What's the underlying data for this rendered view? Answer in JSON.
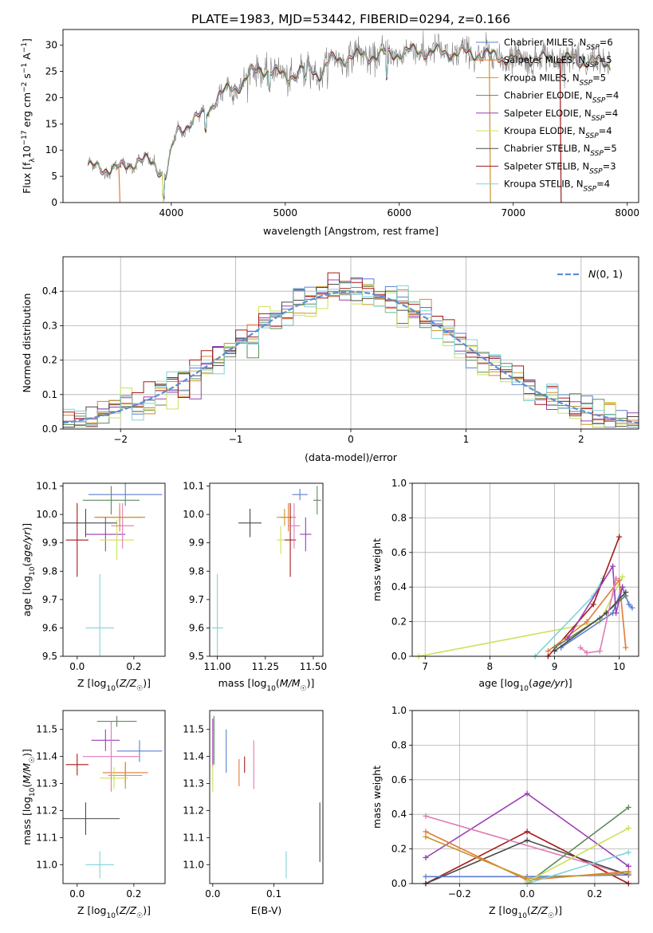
{
  "figure_title": "PLATE=1983, MJD=53442, FIBERID=0294, z=0.166",
  "colors": {
    "chabrier_miles": "#5b7fd0",
    "salpeter_miles": "#e07b39",
    "kroupa_miles": "#c8942b",
    "chabrier_elodie": "#5f8a5f",
    "salpeter_elodie": "#9b3fb5",
    "kroupa_elodie": "#cde05a",
    "chabrier_stelib": "#4a4a4a",
    "salpeter_stelib": "#a31a1a",
    "kroupa_stelib": "#7fd3d9",
    "pink": "#e07bb5",
    "spectrum": "#808080",
    "normal_curve": "#5b8fd6"
  },
  "chart_data": [
    {
      "id": "spectrum",
      "type": "line",
      "title": "PLATE=1983, MJD=53442, FIBERID=0294, z=0.166",
      "xlabel": "wavelength [Angstrom, rest frame]",
      "ylabel": "Flux [f_λ10^-17 erg cm^-2 s^-1 A^-1]",
      "xlim": [
        3050,
        8100
      ],
      "ylim": [
        0,
        33
      ],
      "xticks": [
        4000,
        5000,
        6000,
        7000,
        8000
      ],
      "yticks": [
        0,
        5,
        10,
        15,
        20,
        25,
        30
      ],
      "grid": false,
      "legend_position": "right",
      "continuum": {
        "x": [
          3270,
          3400,
          3550,
          3700,
          3850,
          3950,
          4050,
          4150,
          4300,
          4400,
          4500,
          4600,
          4700,
          4800,
          4900,
          5000,
          5100,
          5200,
          5300,
          5400,
          5600,
          5800,
          6000,
          6200,
          6400,
          6600,
          6800,
          7000,
          7200,
          7400,
          7600,
          7850
        ],
        "y": [
          6.8,
          6.5,
          6.5,
          8.0,
          7.5,
          5.0,
          13.5,
          15.0,
          17.0,
          20.0,
          21.5,
          22.5,
          24.5,
          25.5,
          25.0,
          24.0,
          24.5,
          26.0,
          24.5,
          27.0,
          28.0,
          28.0,
          28.5,
          29.0,
          28.5,
          28.5,
          28.0,
          27.5,
          27.5,
          27.5,
          27.0,
          26.5
        ]
      },
      "series": [
        {
          "name": "Chabrier MILES, N_SSP=6",
          "color_key": "chabrier_miles"
        },
        {
          "name": "Salpeter MILES, N_SSP=5",
          "color_key": "salpeter_miles"
        },
        {
          "name": "Kroupa MILES, N_SSP=5",
          "color_key": "kroupa_miles"
        },
        {
          "name": "Chabrier ELODIE, N_SSP=4",
          "color_key": "chabrier_elodie"
        },
        {
          "name": "Salpeter ELODIE, N_SSP=4",
          "color_key": "salpeter_elodie"
        },
        {
          "name": "Kroupa ELODIE, N_SSP=4",
          "color_key": "kroupa_elodie"
        },
        {
          "name": "Chabrier STELIB, N_SSP=5",
          "color_key": "chabrier_stelib"
        },
        {
          "name": "Salpeter STELIB, N_SSP=3",
          "color_key": "salpeter_stelib"
        },
        {
          "name": "Kroupa STELIB, N_SSP=4",
          "color_key": "kroupa_stelib"
        }
      ],
      "dropouts": [
        {
          "x": 3540,
          "color_key": "salpeter_miles"
        },
        {
          "x": 3920,
          "color_key": "kroupa_elodie"
        },
        {
          "x": 6790,
          "color_key": "kroupa_miles"
        },
        {
          "x": 7410,
          "color_key": "salpeter_stelib"
        }
      ]
    },
    {
      "id": "residuals",
      "type": "histogram",
      "xlabel": "(data-model)/error",
      "ylabel": "Normed distribution",
      "xlim": [
        -2.5,
        2.5
      ],
      "ylim": [
        0,
        0.5
      ],
      "xticks": [
        -2,
        -1,
        0,
        1,
        2
      ],
      "yticks": [
        0.0,
        0.1,
        0.2,
        0.3,
        0.4
      ],
      "grid": true,
      "legend_position": "top-right",
      "legend": [
        "N(0,1)"
      ],
      "bin_width": 0.1
    },
    {
      "id": "age_vs_Z",
      "type": "errorbar",
      "xlabel": "Z [log10(Z/Z☉)]",
      "ylabel": "age  [log10(age/yr)]",
      "xlim": [
        -0.05,
        0.31
      ],
      "ylim": [
        9.5,
        10.11
      ],
      "xticks": [
        0.0,
        0.2
      ],
      "yticks": [
        9.5,
        9.6,
        9.7,
        9.8,
        9.9,
        10.0,
        10.1
      ],
      "points": [
        {
          "x": 0.17,
          "y": 10.07,
          "xerr": 0.13,
          "yerr": 0.04,
          "color_key": "chabrier_miles"
        },
        {
          "x": 0.15,
          "y": 9.99,
          "xerr": 0.09,
          "yerr": 0.05,
          "color_key": "salpeter_miles"
        },
        {
          "x": 0.15,
          "y": 9.99,
          "xerr": 0.08,
          "yerr": 0.03,
          "color_key": "kroupa_miles"
        },
        {
          "x": 0.12,
          "y": 10.05,
          "xerr": 0.1,
          "yerr": 0.05,
          "color_key": "chabrier_elodie"
        },
        {
          "x": 0.1,
          "y": 9.93,
          "xerr": 0.07,
          "yerr": 0.06,
          "color_key": "salpeter_elodie"
        },
        {
          "x": 0.14,
          "y": 9.91,
          "xerr": 0.06,
          "yerr": 0.07,
          "color_key": "kroupa_elodie"
        },
        {
          "x": 0.03,
          "y": 9.97,
          "xerr": 0.11,
          "yerr": 0.05,
          "color_key": "chabrier_stelib"
        },
        {
          "x": 0.0,
          "y": 9.91,
          "xerr": 0.04,
          "yerr": 0.13,
          "color_key": "salpeter_stelib"
        },
        {
          "x": 0.08,
          "y": 9.6,
          "xerr": 0.05,
          "yerr": 0.19,
          "color_key": "kroupa_stelib"
        },
        {
          "x": 0.16,
          "y": 9.96,
          "xerr": 0.04,
          "yerr": 0.08,
          "color_key": "pink"
        }
      ]
    },
    {
      "id": "age_vs_mass",
      "type": "errorbar",
      "xlabel": "mass [log10(M/M☉)]",
      "ylabel": "",
      "xlim": [
        10.96,
        11.55
      ],
      "ylim": [
        9.5,
        10.11
      ],
      "xticks": [
        11.0,
        11.25,
        11.5
      ],
      "yticks": [
        9.5,
        9.6,
        9.7,
        9.8,
        9.9,
        10.0,
        10.1
      ],
      "points": [
        {
          "x": 11.43,
          "y": 10.07,
          "xerr": 0.04,
          "yerr": 0.02,
          "color_key": "chabrier_miles"
        },
        {
          "x": 11.37,
          "y": 9.99,
          "xerr": 0.04,
          "yerr": 0.05,
          "color_key": "salpeter_miles"
        },
        {
          "x": 11.35,
          "y": 9.99,
          "xerr": 0.04,
          "yerr": 0.03,
          "color_key": "kroupa_miles"
        },
        {
          "x": 11.52,
          "y": 10.05,
          "xerr": 0.02,
          "yerr": 0.05,
          "color_key": "chabrier_elodie"
        },
        {
          "x": 11.46,
          "y": 9.93,
          "xerr": 0.03,
          "yerr": 0.06,
          "color_key": "salpeter_elodie"
        },
        {
          "x": 11.33,
          "y": 9.91,
          "xerr": 0.02,
          "yerr": 0.05,
          "color_key": "kroupa_elodie"
        },
        {
          "x": 11.17,
          "y": 9.97,
          "xerr": 0.06,
          "yerr": 0.05,
          "color_key": "chabrier_stelib"
        },
        {
          "x": 11.38,
          "y": 9.91,
          "xerr": 0.03,
          "yerr": 0.13,
          "color_key": "salpeter_stelib"
        },
        {
          "x": 11.0,
          "y": 9.6,
          "xerr": 0.03,
          "yerr": 0.19,
          "color_key": "kroupa_stelib"
        },
        {
          "x": 11.4,
          "y": 9.96,
          "xerr": 0.03,
          "yerr": 0.08,
          "color_key": "pink"
        }
      ]
    },
    {
      "id": "weight_vs_age",
      "type": "line",
      "xlabel": "age  [log10(age/yr)]",
      "ylabel": "mass weight",
      "xlim": [
        6.8,
        10.3
      ],
      "ylim": [
        0,
        1.0
      ],
      "xticks": [
        7,
        8,
        9,
        10
      ],
      "yticks": [
        0.0,
        0.2,
        0.4,
        0.6,
        0.8,
        1.0
      ],
      "grid": true,
      "series": [
        {
          "color_key": "kroupa_elodie",
          "x": [
            6.9,
            9.7,
            10.05
          ],
          "y": [
            0.0,
            0.2,
            0.46
          ]
        },
        {
          "color_key": "kroupa_stelib",
          "x": [
            8.7,
            9.6,
            9.75
          ],
          "y": [
            0.0,
            0.35,
            0.45
          ]
        },
        {
          "color_key": "salpeter_stelib",
          "x": [
            8.9,
            9.6,
            10.0
          ],
          "y": [
            0.0,
            0.3,
            0.69
          ]
        },
        {
          "color_key": "chabrier_miles",
          "x": [
            9.1,
            9.9,
            10.05,
            10.15,
            10.2
          ],
          "y": [
            0.05,
            0.25,
            0.4,
            0.3,
            0.28
          ]
        },
        {
          "color_key": "salpeter_miles",
          "x": [
            8.9,
            9.5,
            10.0,
            10.1
          ],
          "y": [
            0.03,
            0.2,
            0.44,
            0.05
          ]
        },
        {
          "color_key": "chabrier_elodie",
          "x": [
            9.0,
            9.7,
            10.1
          ],
          "y": [
            0.05,
            0.22,
            0.35
          ]
        },
        {
          "color_key": "salpeter_elodie",
          "x": [
            9.2,
            9.9,
            9.95,
            10.05
          ],
          "y": [
            0.1,
            0.52,
            0.25,
            0.4
          ]
        },
        {
          "color_key": "chabrier_stelib",
          "x": [
            9.0,
            9.8,
            10.1
          ],
          "y": [
            0.03,
            0.25,
            0.37
          ]
        },
        {
          "color_key": "pink",
          "x": [
            9.4,
            9.5,
            9.7,
            9.95
          ],
          "y": [
            0.05,
            0.02,
            0.03,
            0.45
          ]
        }
      ]
    },
    {
      "id": "mass_vs_Z",
      "type": "errorbar",
      "xlabel": "Z [log10(Z/Z☉)]",
      "ylabel": "mass [log10(M/M☉)]",
      "xlim": [
        -0.05,
        0.31
      ],
      "ylim": [
        10.93,
        11.57
      ],
      "xticks": [
        0.0,
        0.2
      ],
      "yticks": [
        11.0,
        11.1,
        11.2,
        11.3,
        11.4,
        11.5
      ],
      "points": [
        {
          "x": 0.22,
          "y": 11.42,
          "xerr": 0.08,
          "yerr": 0.04,
          "color_key": "chabrier_miles"
        },
        {
          "x": 0.17,
          "y": 11.34,
          "xerr": 0.08,
          "yerr": 0.04,
          "color_key": "salpeter_miles"
        },
        {
          "x": 0.17,
          "y": 11.33,
          "xerr": 0.06,
          "yerr": 0.05,
          "color_key": "kroupa_miles"
        },
        {
          "x": 0.14,
          "y": 11.53,
          "xerr": 0.07,
          "yerr": 0.02,
          "color_key": "chabrier_elodie"
        },
        {
          "x": 0.1,
          "y": 11.46,
          "xerr": 0.05,
          "yerr": 0.04,
          "color_key": "salpeter_elodie"
        },
        {
          "x": 0.13,
          "y": 11.32,
          "xerr": 0.05,
          "yerr": 0.04,
          "color_key": "kroupa_elodie"
        },
        {
          "x": 0.03,
          "y": 11.17,
          "xerr": 0.12,
          "yerr": 0.06,
          "color_key": "chabrier_stelib"
        },
        {
          "x": 0.0,
          "y": 11.37,
          "xerr": 0.04,
          "yerr": 0.04,
          "color_key": "salpeter_stelib"
        },
        {
          "x": 0.08,
          "y": 11.0,
          "xerr": 0.05,
          "yerr": 0.05,
          "color_key": "kroupa_stelib"
        },
        {
          "x": 0.12,
          "y": 11.4,
          "xerr": 0.1,
          "yerr": 0.13,
          "color_key": "pink"
        }
      ]
    },
    {
      "id": "mass_vs_ebv",
      "type": "errorbar",
      "xlabel": "E(B-V)",
      "ylabel": "",
      "xlim": [
        -0.005,
        0.18
      ],
      "ylim": [
        10.93,
        11.57
      ],
      "xticks": [
        0.0,
        0.1
      ],
      "yticks": [
        11.0,
        11.1,
        11.2,
        11.3,
        11.4,
        11.5
      ],
      "points": [
        {
          "x": 0.0,
          "y": 11.45,
          "yerr": 0.09,
          "color_key": "salpeter_elodie"
        },
        {
          "x": 0.0,
          "y": 11.32,
          "yerr": 0.05,
          "color_key": "kroupa_elodie"
        },
        {
          "x": 0.002,
          "y": 11.46,
          "yerr": 0.09,
          "color_key": "chabrier_elodie"
        },
        {
          "x": 0.022,
          "y": 11.42,
          "yerr": 0.08,
          "color_key": "chabrier_miles"
        },
        {
          "x": 0.043,
          "y": 11.34,
          "yerr": 0.05,
          "color_key": "salpeter_miles"
        },
        {
          "x": 0.052,
          "y": 11.37,
          "yerr": 0.03,
          "color_key": "salpeter_stelib"
        },
        {
          "x": 0.067,
          "y": 11.37,
          "yerr": 0.09,
          "color_key": "pink"
        },
        {
          "x": 0.12,
          "y": 11.0,
          "yerr": 0.05,
          "color_key": "kroupa_stelib"
        },
        {
          "x": 0.175,
          "y": 11.12,
          "yerr": 0.11,
          "color_key": "chabrier_stelib"
        }
      ]
    },
    {
      "id": "weight_vs_Z",
      "type": "line",
      "xlabel": "Z [log10(Z/Z☉)]",
      "ylabel": "mass weight",
      "xlim": [
        -0.34,
        0.33
      ],
      "ylim": [
        0,
        1.0
      ],
      "xticks": [
        -0.2,
        0.0,
        0.2
      ],
      "yticks": [
        0.0,
        0.2,
        0.4,
        0.6,
        0.8,
        1.0
      ],
      "grid": true,
      "series": [
        {
          "color_key": "salpeter_elodie",
          "x": [
            -0.3,
            0.0,
            0.3
          ],
          "y": [
            0.15,
            0.52,
            0.1
          ]
        },
        {
          "color_key": "salpeter_stelib",
          "x": [
            -0.3,
            0.0,
            0.3
          ],
          "y": [
            0.0,
            0.3,
            0.0
          ]
        },
        {
          "color_key": "pink",
          "x": [
            -0.3,
            0.3
          ],
          "y": [
            0.39,
            0.05
          ]
        },
        {
          "color_key": "chabrier_stelib",
          "x": [
            -0.3,
            0.0,
            0.3
          ],
          "y": [
            0.0,
            0.25,
            0.05
          ]
        },
        {
          "color_key": "chabrier_miles",
          "x": [
            -0.3,
            0.0,
            0.3
          ],
          "y": [
            0.04,
            0.04,
            0.05
          ]
        },
        {
          "color_key": "salpeter_miles",
          "x": [
            -0.3,
            0.0,
            0.3
          ],
          "y": [
            0.3,
            0.02,
            0.07
          ]
        },
        {
          "color_key": "kroupa_miles",
          "x": [
            -0.3,
            0.0,
            0.3
          ],
          "y": [
            0.27,
            0.03,
            0.06
          ]
        },
        {
          "color_key": "chabrier_elodie",
          "x": [
            0.0,
            0.3
          ],
          "y": [
            0.0,
            0.44
          ]
        },
        {
          "color_key": "kroupa_elodie",
          "x": [
            0.0,
            0.3
          ],
          "y": [
            0.01,
            0.32
          ]
        },
        {
          "color_key": "kroupa_stelib",
          "x": [
            0.0,
            0.3
          ],
          "y": [
            0.0,
            0.18
          ]
        }
      ]
    }
  ]
}
